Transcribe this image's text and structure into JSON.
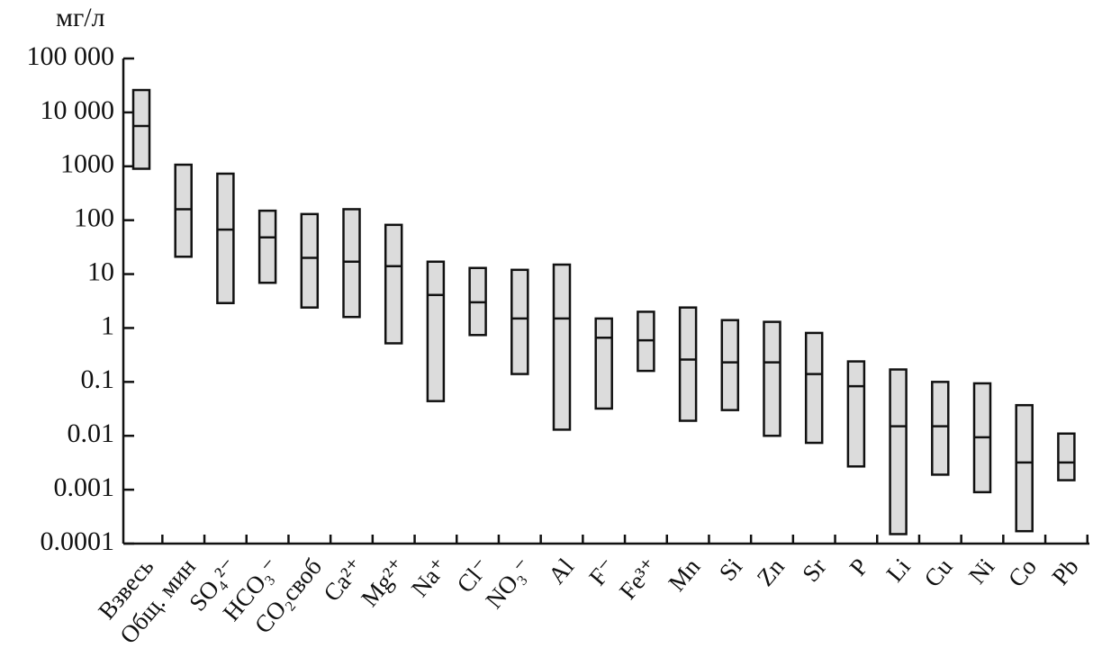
{
  "chart_data": {
    "type": "range-box",
    "y_label": "мг/л",
    "log_scale": true,
    "color": "#dcdcdc",
    "categories": [
      "Взвесь",
      "Общ. мин",
      "SO₄²⁻",
      "HCO₃⁻",
      "CO₂своб",
      "Ca²⁺",
      "Mg²⁺",
      "Na⁺",
      "Cl⁻",
      "NO₃⁻",
      "Al",
      "F⁻",
      "Fe³⁺",
      "Mn",
      "Si",
      "Zn",
      "Sr",
      "P",
      "Li",
      "Cu",
      "Ni",
      "Co",
      "Pb"
    ],
    "low": [
      900,
      21,
      2.9,
      6.9,
      2.4,
      1.6,
      0.52,
      0.044,
      0.74,
      0.14,
      0.013,
      0.032,
      0.16,
      0.019,
      0.03,
      0.01,
      0.0074,
      0.0027,
      0.00015,
      0.0019,
      0.0009,
      0.00017,
      0.0015
    ],
    "median": [
      5600,
      160,
      67,
      48,
      20,
      17,
      14,
      4.1,
      3,
      1.5,
      1.5,
      0.66,
      0.59,
      0.26,
      0.23,
      0.23,
      0.14,
      0.083,
      0.015,
      0.015,
      0.0094,
      0.0032,
      0.0032
    ],
    "high": [
      26000,
      1070,
      730,
      150,
      130,
      160,
      82,
      17,
      13,
      12,
      15,
      1.5,
      2,
      2.4,
      1.4,
      1.3,
      0.81,
      0.24,
      0.17,
      0.1,
      0.094,
      0.037,
      0.011
    ],
    "ylim": [
      0.0001,
      100000
    ],
    "yticks": [
      {
        "value": 100000,
        "label": "100 000"
      },
      {
        "value": 10000,
        "label": "10 000"
      },
      1000,
      100,
      10,
      1,
      0.1,
      0.01,
      0.001,
      0.0001
    ]
  }
}
